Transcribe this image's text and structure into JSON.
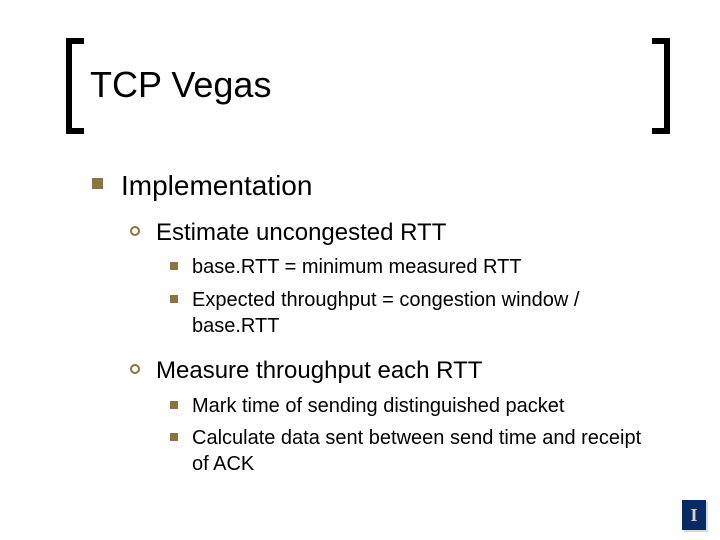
{
  "colors": {
    "bullet": "#8a743f",
    "text": "#000000",
    "bg": "#ffffff",
    "logo_bg": "#0a2a66",
    "logo_fg": "#d9d2c0"
  },
  "fonts": {
    "title_size": 36,
    "lvl1_size": 28,
    "lvl2_size": 24,
    "lvl3_size": 20
  },
  "title": "TCP Vegas",
  "lvl1": "Implementation",
  "sections": [
    {
      "heading": "Estimate uncongested RTT",
      "items": [
        "base.RTT = minimum measured RTT",
        "Expected throughput = congestion window / base.RTT"
      ]
    },
    {
      "heading": "Measure throughput each RTT",
      "items": [
        "Mark time of sending distinguished packet",
        "Calculate data sent between send time and receipt of ACK"
      ]
    }
  ],
  "logo_letter": "I"
}
